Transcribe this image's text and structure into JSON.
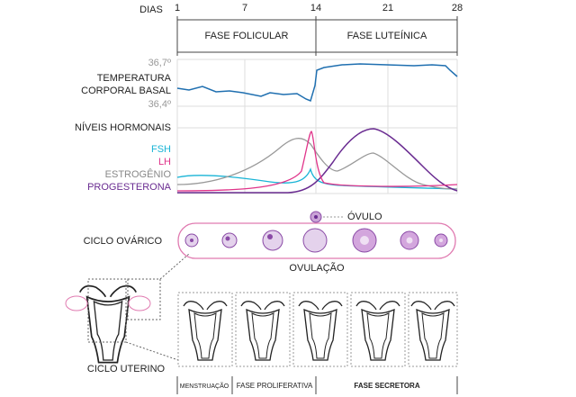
{
  "header": {
    "days_label": "DIAS",
    "days": [
      "1",
      "7",
      "14",
      "21",
      "28"
    ]
  },
  "phases": [
    "FASE FOLICULAR",
    "FASE LUTEÍNICA"
  ],
  "temperature": {
    "max": "36,7º",
    "label": [
      "TEMPERATURA",
      "CORPORAL BASAL"
    ],
    "min": "36,4º"
  },
  "hormones": {
    "title": "NÍVEIS HORMONAIS",
    "legend": [
      "FSH",
      "LH",
      "ESTROGÊNIO",
      "PROGESTERONA"
    ]
  },
  "ovarian": {
    "ovum": "ÓVULO",
    "label": "CICLO OVÁRICO",
    "ovulation": "OVULAÇÃO"
  },
  "uterine": {
    "label": "CICLO UTERINO",
    "phases": [
      "MENSTRUAÇÃO",
      "FASE PROLIFERATIVA",
      "FASE SECRETORA"
    ]
  }
}
